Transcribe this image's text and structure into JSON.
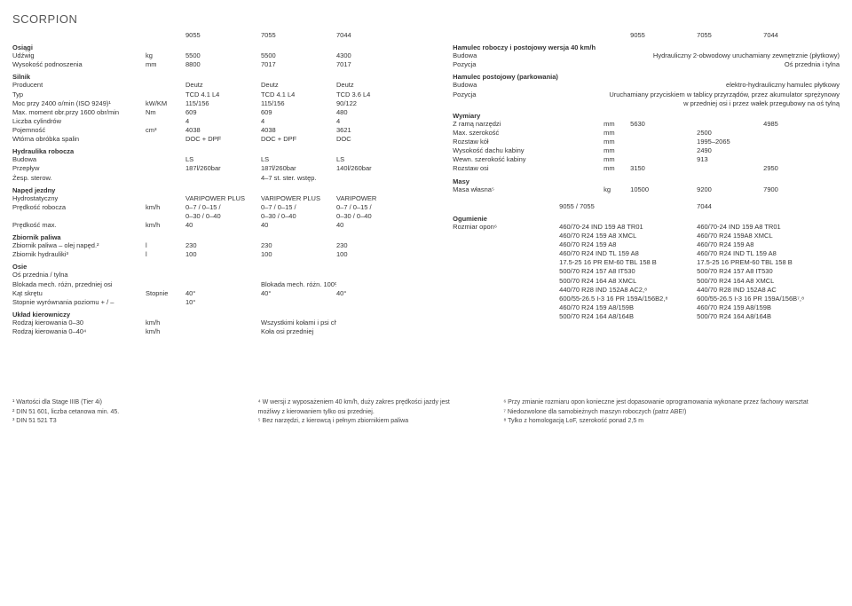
{
  "title": "SCORPION",
  "left": {
    "models": {
      "header_cols": [
        "9055",
        "7055",
        "7044"
      ]
    },
    "osiagi": {
      "h": "Osiągi",
      "rows": [
        {
          "l": "Udźwig",
          "u": "kg",
          "c": [
            "5500",
            "5500",
            "4300"
          ]
        },
        {
          "l": "Wysokość podnoszenia",
          "u": "mm",
          "c": [
            "8800",
            "7017",
            "7017"
          ]
        }
      ]
    },
    "silnik": {
      "h": "Silnik",
      "rows": [
        {
          "l": "Producent",
          "u": "",
          "c": [
            "Deutz",
            "Deutz",
            "Deutz"
          ]
        },
        {
          "l": "Typ",
          "u": "",
          "c": [
            "TCD 4.1 L4",
            "TCD 4.1 L4",
            "TCD 3.6 L4"
          ]
        },
        {
          "l": "Moc przy 2400 o/min (ISO 9249)¹",
          "u": "kW/KM",
          "c": [
            "115/156",
            "115/156",
            "90/122"
          ]
        },
        {
          "l": "Max. moment obr.przy 1600 obr/min",
          "u": "Nm",
          "c": [
            "609",
            "609",
            "480"
          ]
        },
        {
          "l": "Liczba cylindrów",
          "u": "",
          "c": [
            "4",
            "4",
            "4"
          ]
        },
        {
          "l": "Pojemność",
          "u": "cm³",
          "c": [
            "4038",
            "4038",
            "3621"
          ]
        },
        {
          "l": "Wtórna obróbka spalin",
          "u": "",
          "c": [
            "DOC + DPF",
            "DOC + DPF",
            "DOC"
          ]
        }
      ]
    },
    "hydraulika": {
      "h": "Hydraulika robocza",
      "rows": [
        {
          "l": "Budowa",
          "u": "",
          "c": [
            "LS",
            "LS",
            "LS"
          ]
        },
        {
          "l": "Przepływ",
          "u": "",
          "c": [
            "187l/260bar",
            "187l/260bar",
            "140l/260bar"
          ]
        },
        {
          "l": "Żesp. sterow.",
          "u": "",
          "c": [
            "",
            "4–7 st. ster. wstęp.",
            ""
          ]
        }
      ]
    },
    "naped": {
      "h": "Napęd jezdny",
      "rows": [
        {
          "l": "Hydrostatyczny",
          "u": "",
          "c": [
            "VARIPOWER PLUS",
            "VARIPOWER PLUS",
            "VARIPOWER"
          ]
        },
        {
          "l": "Prędkość robocza",
          "u": "km/h",
          "c": [
            "0–7 / 0–15 /",
            "0–7 / 0–15 /",
            "0–7 / 0–15 /"
          ]
        },
        {
          "l": "",
          "u": "",
          "c": [
            "0–30 / 0–40",
            "0–30 / 0–40",
            "0–30 / 0–40"
          ]
        },
        {
          "l": "Prędkość max.",
          "u": "km/h",
          "c": [
            "40",
            "40",
            "40"
          ]
        }
      ]
    },
    "zbiornik": {
      "h": "Zbiornik paliwa",
      "rows": [
        {
          "l": "Zbiornik paliwa – olej napęd.²",
          "u": "l",
          "c": [
            "230",
            "230",
            "230"
          ]
        },
        {
          "l": "Zbiornik hydrauliki³",
          "u": "l",
          "c": [
            "100",
            "100",
            "100"
          ]
        }
      ]
    },
    "osie": {
      "h": "Osie",
      "rows": [
        {
          "l": "Oś przednia / tylna",
          "u": "",
          "c": [
            "",
            "",
            ""
          ]
        },
        {
          "l": "Blokada mech. różn, przedniej osi",
          "u": "",
          "c": [
            "",
            "Blokada mech. różn. 100%",
            ""
          ]
        },
        {
          "l": "Kąt skrętu",
          "u": "Stopnie",
          "c": [
            "40°",
            "40°",
            "40°"
          ]
        },
        {
          "l": "Stopnie wyrównania poziomu + / –",
          "u": "",
          "c": [
            "10°",
            "",
            ""
          ]
        }
      ]
    },
    "uklad": {
      "h": "Układ kierowniczy",
      "rows": [
        {
          "l": "Rodzaj kierowania 0–30",
          "u": "km/h",
          "c": [
            "",
            "Wszystkimi kołami i psi chód",
            ""
          ]
        },
        {
          "l": "Rodzaj kierowania 0–40⁴",
          "u": "km/h",
          "c": [
            "",
            "Koła osi przedniej",
            ""
          ]
        }
      ]
    }
  },
  "right": {
    "models": {
      "header_cols": [
        "9055",
        "7055",
        "7044"
      ]
    },
    "hamulec": {
      "h": "Hamulec roboczy i postojowy wersja 40 km/h",
      "rows": [
        {
          "l": "Budowa",
          "v": "Hydrauliczny 2-obwodowy uruchamiany zewnętrznie (płytkowy)"
        },
        {
          "l": "Pozycja",
          "v": "Oś przednia i tylna"
        }
      ]
    },
    "hamulec_p": {
      "h": "Hamulec postojowy (parkowania)",
      "rows": [
        {
          "l": "Budowa",
          "v": "elektro-hydrauliczny hamulec płytkowy"
        },
        {
          "l": "Pozycja",
          "v": "Uruchamiany przyciskiem w tablicy przyrządów, przez akumulator sprężynowy w przedniej osi i przez wałek przegubowy na oś tylną"
        }
      ]
    },
    "wymiary": {
      "h": "Wymiary",
      "rows": [
        {
          "l": "Z ramą narzędzi",
          "u": "mm",
          "c": [
            "5630",
            "",
            "4985"
          ]
        },
        {
          "l": "Max. szerokość",
          "u": "mm",
          "c": [
            "",
            "2500",
            ""
          ]
        },
        {
          "l": "Rozstaw kół",
          "u": "mm",
          "c": [
            "",
            "1995–2065",
            ""
          ]
        },
        {
          "l": "Wysokość dachu kabiny",
          "u": "mm",
          "c": [
            "",
            "2490",
            ""
          ]
        },
        {
          "l": "Wewn. szerokość kabiny",
          "u": "mm",
          "c": [
            "",
            "913",
            ""
          ]
        },
        {
          "l": "Rozstaw osi",
          "u": "mm",
          "c": [
            "3150",
            "",
            "2950"
          ]
        }
      ]
    },
    "masy": {
      "h": "Masy",
      "rows": [
        {
          "l": "Masa własna⁵",
          "u": "kg",
          "c": [
            "10500",
            "9200",
            "7900"
          ]
        }
      ]
    },
    "ogumienie": {
      "h": "Ogumienie",
      "header_cols": [
        "9055 / 7055",
        "7044"
      ],
      "rows": [
        {
          "l": "Rozmiar opon⁶",
          "c": [
            "460/70-24 IND 159 A8 TR01",
            "460/70-24 IND 159 A8 TR01"
          ]
        },
        {
          "l": "",
          "c": [
            "460/70 R24 159 A8 XMCL",
            "460/70 R24 159A8 XMCL"
          ]
        },
        {
          "l": "",
          "c": [
            "460/70 R24 159 A8",
            "460/70 R24 159 A8"
          ]
        },
        {
          "l": "",
          "c": [
            "460/70 R24 IND TL 159 A8",
            "460/70 R24 IND TL 159 A8"
          ]
        },
        {
          "l": "",
          "c": [
            "17.5-25 16 PR EM-60 TBL 158 B",
            "17.5-25 16 PREM-60 TBL 158 B"
          ]
        },
        {
          "l": "",
          "c": [
            "500/70 R24 157 A8 IT530",
            "500/70 R24 157 A8 IT530"
          ]
        },
        {
          "l": "",
          "c": [
            "500/70 R24 164 A8 XMCL",
            "500/70 R24 164 A8 XMCL"
          ]
        },
        {
          "l": "",
          "c": [
            "440/70 R28 IND 152A8 AC2,⁸",
            "440/70 R28 IND 152A8 AC"
          ]
        },
        {
          "l": "",
          "c": [
            "600/55-26.5 I-3 16 PR 159A/156B2,⁸",
            "600/55-26.5 I-3 16 PR 159A/156B⁷,⁸"
          ]
        },
        {
          "l": "",
          "c": [
            "460/70 R24 159 A8/159B",
            "460/70 R24 159 A8/159B"
          ]
        },
        {
          "l": "",
          "c": [
            "500/70 R24 164 A8/164B",
            "500/70 R24 164 A8/164B"
          ]
        }
      ]
    }
  },
  "footnotes": {
    "col1": [
      "¹ Wartości dla Stage IIIB (Tier 4i)",
      "² DIN 51 601, liczba cetanowa min. 45.",
      "³ DIN 51 521 T3"
    ],
    "col2": [
      "⁴ W wersji z wyposażeniem 40 km/h, duży zakres prędkości jazdy jest możliwy z kierowaniem tylko osi przedniej.",
      "⁵ Bez narzędzi, z kierowcą i pełnym zbiornikiem paliwa"
    ],
    "col3": [
      "⁶ Przy zmianie rozmiaru opon konieczne jest dopasowanie oprogramowania wykonane przez fachowy warsztat",
      "⁷ Niedozwolone dla samobieżnych maszyn roboczych (patrz ABE!)",
      "⁸ Tylko z homologacją LoF, szerokość ponad 2,5 m"
    ]
  }
}
